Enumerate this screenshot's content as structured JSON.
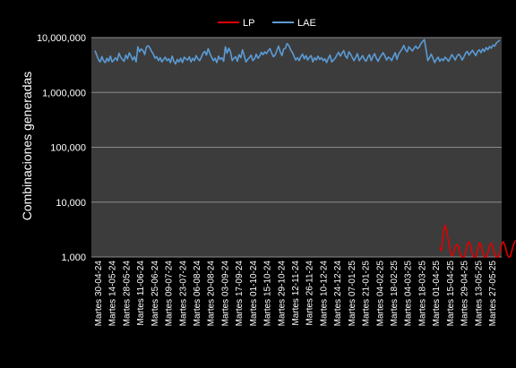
{
  "chart_data": {
    "type": "line",
    "ylabel": "Combinaciones generadas",
    "yscale": "log",
    "ylim": [
      1000,
      10000000
    ],
    "yticks": [
      "1,000",
      "10,000",
      "100,000",
      "1,000,000",
      "10,000,000"
    ],
    "grid": true,
    "legend": "top",
    "background": "#3c3c3c",
    "xtick_labels": [
      "Martes 30-04-24",
      "Martes 14-05-24",
      "Martes 28-05-24",
      "Martes 11-06-24",
      "Martes 25-06-24",
      "Martes 09-07-24",
      "Martes 23-07-24",
      "Martes 06-08-24",
      "Martes 20-08-24",
      "Martes 03-09-24",
      "Martes 17-09-24",
      "Martes 01-10-24",
      "Martes 15-10-24",
      "Martes 29-10-24",
      "Martes 12-11-24",
      "Martes 26-11-24",
      "Martes 10-12-24",
      "Martes 24-12-24",
      "Martes 07-01-25",
      "Martes 21-01-25",
      "Martes 04-02-25",
      "Martes 18-02-25",
      "Martes 04-03-25",
      "Martes 18-03-25",
      "Martes 01-04-25",
      "Martes 15-04-25",
      "Martes 29-04-25",
      "Martes 13-05-25",
      "Martes 27-05-25"
    ],
    "series": [
      {
        "name": "LAE",
        "color": "#5b9bd5",
        "start_index": 0,
        "values": [
          5800000,
          4800000,
          4000000,
          3600000,
          4500000,
          3800000,
          3500000,
          4200000,
          3700000,
          4600000,
          3600000,
          3900000,
          4300000,
          3800000,
          5200000,
          4400000,
          4000000,
          3700000,
          4800000,
          4100000,
          5300000,
          4600000,
          3900000,
          4500000,
          3600000,
          6800000,
          5500000,
          6200000,
          5800000,
          4900000,
          6800000,
          7100000,
          6500000,
          5600000,
          5000000,
          4200000,
          4500000,
          3800000,
          4300000,
          3600000,
          4000000,
          4400000,
          3800000,
          4100000,
          3500000,
          4600000,
          3700000,
          3300000,
          4000000,
          3600000,
          4200000,
          3500000,
          4400000,
          4100000,
          3900000,
          4500000,
          3600000,
          4200000,
          3800000,
          4700000,
          4100000,
          3800000,
          4400000,
          5200000,
          5600000,
          4800000,
          6300000,
          5100000,
          4400000,
          3800000,
          4200000,
          3500000,
          4600000,
          4000000,
          4300000,
          3700000,
          6800000,
          5200000,
          6400000,
          5500000,
          3800000,
          4200000,
          4500000,
          3700000,
          4900000,
          4300000,
          6000000,
          4700000,
          3600000,
          4000000,
          4300000,
          4800000,
          3800000,
          4100000,
          5000000,
          4200000,
          4600000,
          5400000,
          4900000,
          5500000,
          5100000,
          5800000,
          6300000,
          5200000,
          4500000,
          4800000,
          5800000,
          7000000,
          5500000,
          4700000,
          6200000,
          6400000,
          7800000,
          7200000,
          6000000,
          5400000,
          4600000,
          3900000,
          4300000,
          3800000,
          4500000,
          5000000,
          4100000,
          4700000,
          3900000,
          4400000,
          4700000,
          3600000,
          4300000,
          3900000,
          4600000,
          4000000,
          4300000,
          3800000,
          4100000,
          3500000,
          4200000,
          4800000,
          3600000,
          3900000,
          4200000,
          4800000,
          5400000,
          4600000,
          5200000,
          5800000,
          4600000,
          4200000,
          5500000,
          5000000,
          4300000,
          3800000,
          4400000,
          5100000,
          3800000,
          4200000,
          4700000,
          4000000,
          3700000,
          4400000,
          4900000,
          3800000,
          4500000,
          5100000,
          4200000,
          3700000,
          4300000,
          4800000,
          5300000,
          4600000,
          3900000,
          4400000,
          4200000,
          3800000,
          4600000,
          5300000,
          4000000,
          5000000,
          5600000,
          6200000,
          7200000,
          6000000,
          5500000,
          6800000,
          6200000,
          5700000,
          6400000,
          7000000,
          6300000,
          6700000,
          7800000,
          8500000,
          9200000,
          6000000,
          3800000,
          4300000,
          5000000,
          4200000,
          3500000,
          4000000,
          4400000,
          3700000,
          4100000,
          3800000,
          4400000,
          4100000,
          3700000,
          4200000,
          4900000,
          4400000,
          3900000,
          4600000,
          5000000,
          4600000,
          3900000,
          4400000,
          5200000,
          5600000,
          4800000,
          5300000,
          5900000,
          5200000,
          4700000,
          5600000,
          6000000,
          5300000,
          6200000,
          5600000,
          6600000,
          6000000,
          6900000,
          6400000,
          7300000,
          7000000,
          8000000,
          8500000,
          9000000
        ]
      },
      {
        "name": "LP",
        "color": "#e00000",
        "start_index": 201,
        "values": [
          1500,
          1300,
          2700,
          3800,
          3000,
          2000,
          1300,
          1050,
          1150,
          1500,
          1700,
          1500,
          1100,
          1000,
          1000,
          1200,
          1700,
          1900,
          1600,
          1100,
          1000,
          1000,
          1350,
          1800,
          1700,
          1200,
          1000,
          1000,
          1150,
          1600,
          1800,
          1500,
          1100,
          1000,
          1000,
          1200,
          1700,
          1900,
          1600,
          1200,
          1000,
          1000,
          1300,
          1700,
          1950,
          2000,
          1800,
          1400,
          1100
        ]
      }
    ]
  }
}
